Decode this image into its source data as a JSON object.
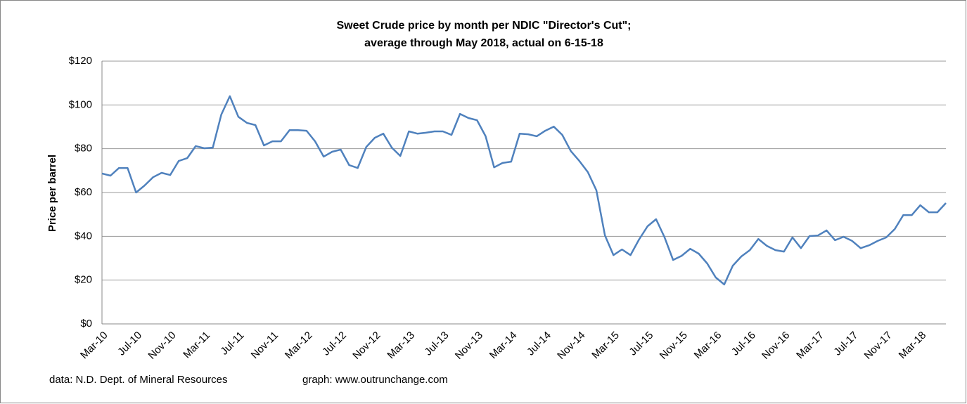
{
  "chart_data": {
    "type": "line",
    "title": "Sweet Crude price by month per NDIC \"Director's Cut\";",
    "subtitle": "average through May 2018, actual on  6-15-18",
    "y_label": "Price per barrel",
    "source": "data: N.D. Dept. of Mineral Resources",
    "credit": "graph:  www.outrunchange.com",
    "categories": [
      "Mar-10",
      null,
      null,
      null,
      "Jul-10",
      null,
      null,
      null,
      "Nov-10",
      null,
      null,
      null,
      "Mar-11",
      null,
      null,
      null,
      "Jul-11",
      null,
      null,
      null,
      "Nov-11",
      null,
      null,
      null,
      "Mar-12",
      null,
      null,
      null,
      "Jul-12",
      null,
      null,
      null,
      "Nov-12",
      null,
      null,
      null,
      "Mar-13",
      null,
      null,
      null,
      "Jul-13",
      null,
      null,
      null,
      "Nov-13",
      null,
      null,
      null,
      "Mar-14",
      null,
      null,
      null,
      "Jul-14",
      null,
      null,
      null,
      "Nov-14",
      null,
      null,
      null,
      "Mar-15",
      null,
      null,
      null,
      "Jul-15",
      null,
      null,
      null,
      "Nov-15",
      null,
      null,
      null,
      "Mar-16",
      null,
      null,
      null,
      "Jul-16",
      null,
      null,
      null,
      "Nov-16",
      null,
      null,
      null,
      "Mar-17",
      null,
      null,
      null,
      "Jul-17",
      null,
      null,
      null,
      "Nov-17",
      null,
      null,
      null,
      "Mar-18",
      null,
      null,
      null
    ],
    "series": [
      {
        "name": "Sweet Crude",
        "color": "#4f81bd",
        "values": [
          68.7,
          67.7,
          71.2,
          71.2,
          60,
          63.2,
          67,
          69,
          68,
          74.4,
          75.7,
          81.2,
          80.2,
          80.5,
          95.6,
          104,
          94.6,
          91.8,
          90.8,
          81.5,
          83.4,
          83.4,
          88.5,
          88.5,
          88.2,
          83.4,
          76.4,
          78.6,
          79.6,
          72.5,
          71.2,
          80.8,
          85,
          86.9,
          80.5,
          76.7,
          87.9,
          86.9,
          87.3,
          87.9,
          87.9,
          86.3,
          95.9,
          94,
          93,
          85.7,
          71.5,
          73.5,
          74.1,
          86.9,
          86.6,
          85.7,
          88.2,
          90.1,
          86.3,
          78.9,
          74.4,
          69.3,
          61,
          40.4,
          31.4,
          34,
          31.4,
          38.5,
          44.6,
          47.8,
          39.5,
          29.2,
          31.1,
          34.3,
          32.1,
          27.6,
          21.2,
          18,
          26.6,
          30.8,
          33.7,
          38.8,
          35.6,
          33.7,
          33,
          39.5,
          34.6,
          40.1,
          40.4,
          42.7,
          38.2,
          39.8,
          37.9,
          34.6,
          35.9,
          37.9,
          39.5,
          43.3,
          49.7,
          49.7,
          54.2,
          51,
          51,
          55.2
        ]
      }
    ],
    "ylim": [
      0,
      120
    ],
    "yticks": [
      {
        "value": 0,
        "label": "$0"
      },
      {
        "value": 20,
        "label": "$20"
      },
      {
        "value": 40,
        "label": "$40"
      },
      {
        "value": 60,
        "label": "$60"
      },
      {
        "value": 80,
        "label": "$80"
      },
      {
        "value": 100,
        "label": "$100"
      },
      {
        "value": 120,
        "label": "$120"
      }
    ],
    "grid": true
  }
}
